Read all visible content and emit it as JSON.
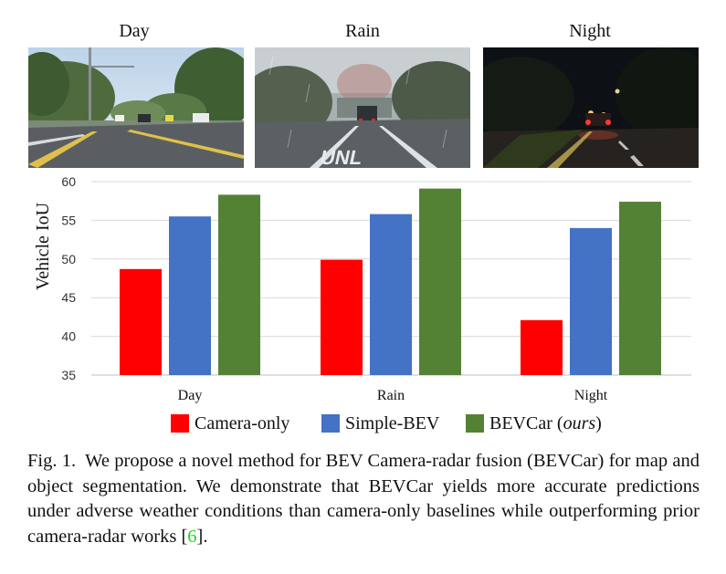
{
  "conditions": [
    "Day",
    "Rain",
    "Night"
  ],
  "colors": {
    "camera_only": "#ff0000",
    "simple_bev": "#4472c4",
    "bevcar": "#548235",
    "grid": "#d9d9d9",
    "citation": "#1fd61f"
  },
  "chart_data": {
    "type": "bar",
    "title": "",
    "xlabel": "",
    "ylabel": "Vehicle IoU",
    "ylim": [
      35,
      60
    ],
    "yticks": [
      35,
      40,
      45,
      50,
      55,
      60
    ],
    "categories": [
      "Day",
      "Rain",
      "Night"
    ],
    "grid": true,
    "legend": "bottom",
    "series": [
      {
        "name": "Camera-only",
        "values": [
          48.7,
          49.9,
          42.1
        ]
      },
      {
        "name": "Simple-BEV",
        "values": [
          55.5,
          55.8,
          54.0
        ]
      },
      {
        "name": "BEVCar",
        "name_suffix": "ours",
        "values": [
          58.3,
          59.1,
          57.4
        ]
      }
    ]
  },
  "caption": {
    "label": "Fig. 1.",
    "text": "We propose a novel method for BEV Camera-radar fusion (BEVCar) for map and object segmentation. We demonstrate that BEVCar yields more accurate predictions under adverse weather conditions than camera-only baselines while outperforming prior camera-radar works [",
    "citation": "6",
    "end": "]."
  }
}
